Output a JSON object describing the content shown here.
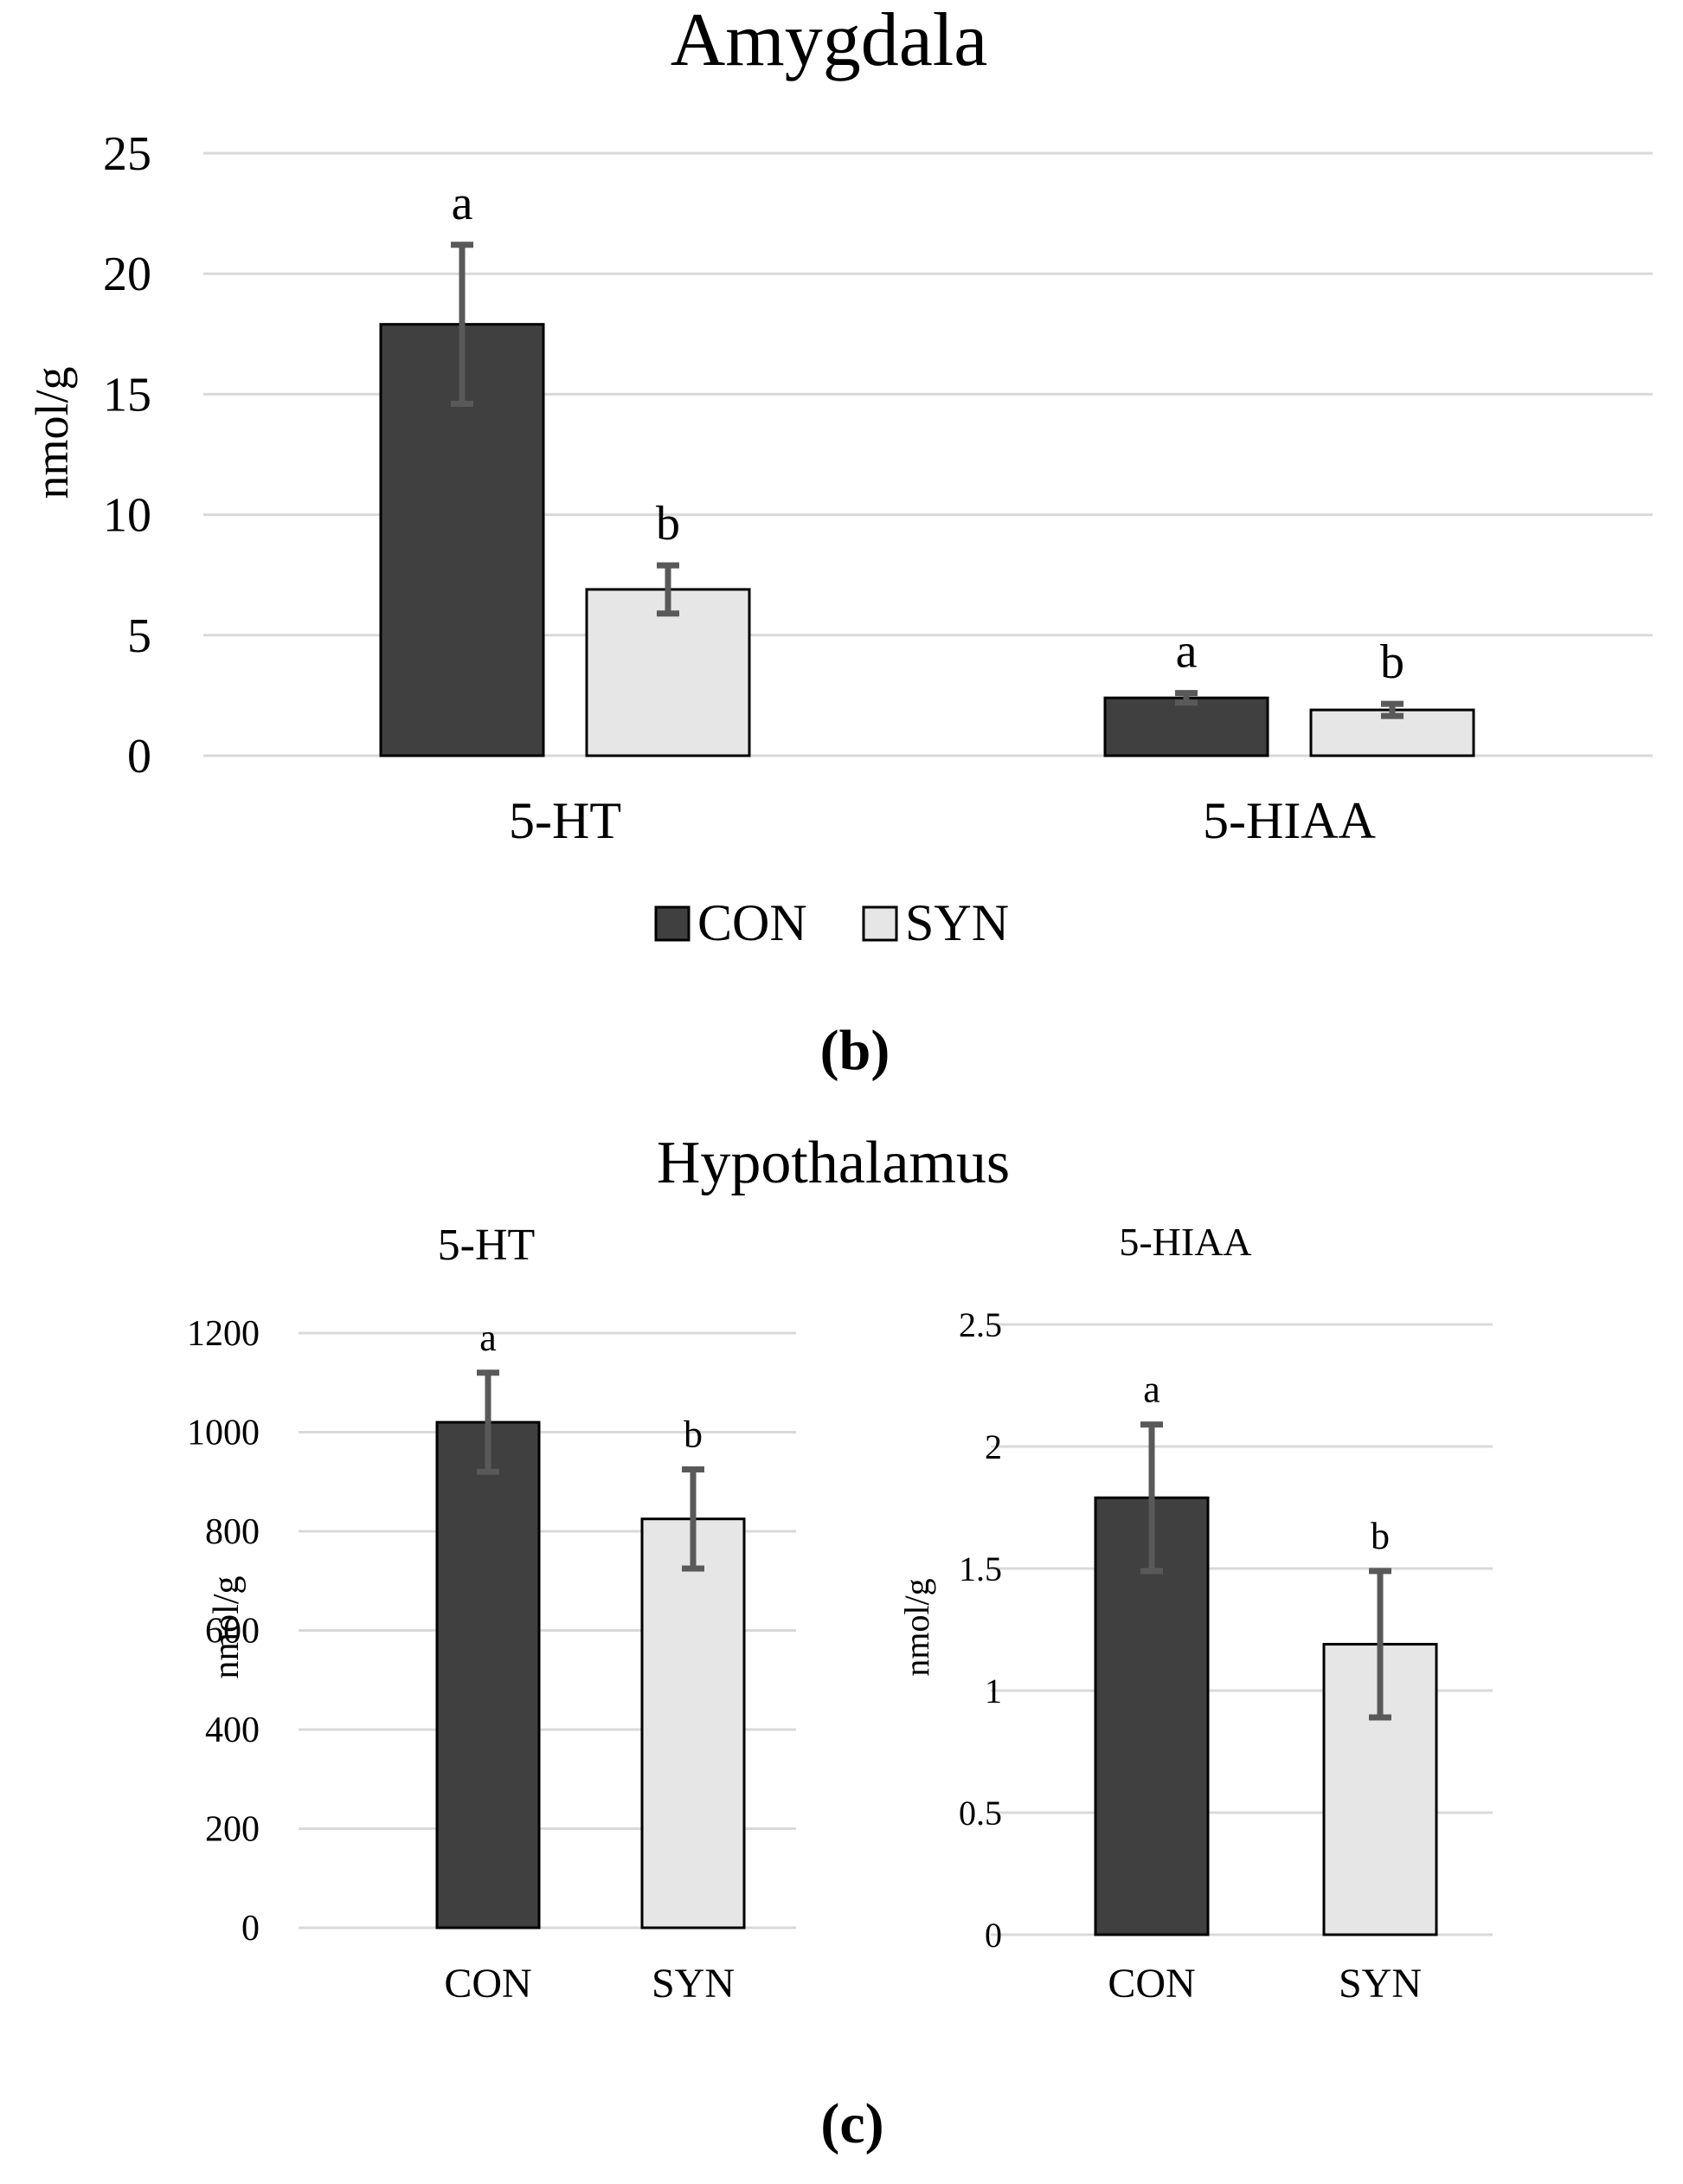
{
  "colors": {
    "con_fill": "#404040",
    "syn_fill": "#e6e6e6",
    "bar_edge": "#000000",
    "error_bar": "#595959",
    "grid": "#d9d9d9"
  },
  "panels": {
    "b_label": "(b)",
    "c_label": "(c)",
    "hypothalamus_title": "Hypothalamus"
  },
  "chart_data": [
    {
      "id": "amygdala",
      "type": "bar",
      "title": "Amygdala",
      "xlabel": "",
      "ylabel": "nmol/g",
      "ylim": [
        0,
        25
      ],
      "yticks": [
        0,
        5,
        10,
        15,
        20,
        25
      ],
      "grid": true,
      "categories": [
        "5-HT",
        "5-HIAA"
      ],
      "legend": {
        "position": "bottom",
        "entries": [
          "CON",
          "SYN"
        ]
      },
      "series": [
        {
          "name": "CON",
          "values": [
            17.9,
            2.4
          ],
          "errors": [
            3.3,
            0.2
          ],
          "labels": [
            "a",
            "a"
          ]
        },
        {
          "name": "SYN",
          "values": [
            6.9,
            1.9
          ],
          "errors": [
            1.0,
            0.25
          ],
          "labels": [
            "b",
            "b"
          ]
        }
      ]
    },
    {
      "id": "hypothalamus-5ht",
      "type": "bar",
      "title": "5-HT",
      "xlabel": "",
      "ylabel": "nmol/g",
      "ylim": [
        0,
        1200
      ],
      "yticks": [
        0,
        200,
        400,
        600,
        800,
        1000,
        1200
      ],
      "grid": true,
      "categories": [
        "CON",
        "SYN"
      ],
      "values": [
        1020,
        825
      ],
      "errors": [
        100,
        100
      ],
      "labels": [
        "a",
        "b"
      ]
    },
    {
      "id": "hypothalamus-5hiaa",
      "type": "bar",
      "title": "5-HIAA",
      "xlabel": "",
      "ylabel": "nmol/g",
      "ylim": [
        0,
        2.5
      ],
      "yticks": [
        0,
        0.5,
        1,
        1.5,
        2,
        2.5
      ],
      "grid": true,
      "categories": [
        "CON",
        "SYN"
      ],
      "values": [
        1.79,
        1.19
      ],
      "errors": [
        0.3,
        0.3
      ],
      "labels": [
        "a",
        "b"
      ]
    }
  ]
}
